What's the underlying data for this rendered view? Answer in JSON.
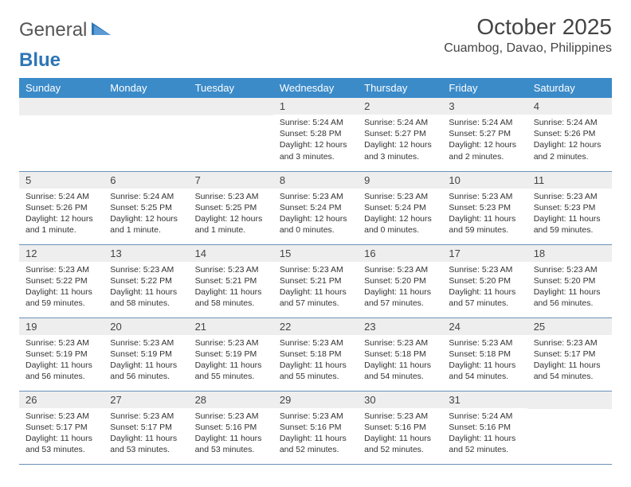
{
  "logo": {
    "text1": "General",
    "text2": "Blue"
  },
  "title": "October 2025",
  "location": "Cuambog, Davao, Philippines",
  "colors": {
    "header_bg": "#3b8bc9",
    "header_fg": "#ffffff",
    "daynum_bg": "#eeeeee",
    "row_border": "#6a91b8",
    "logo_blue": "#2e75b6",
    "body_text": "#333333"
  },
  "day_headers": [
    "Sunday",
    "Monday",
    "Tuesday",
    "Wednesday",
    "Thursday",
    "Friday",
    "Saturday"
  ],
  "weeks": [
    [
      {
        "blank": true
      },
      {
        "blank": true
      },
      {
        "blank": true
      },
      {
        "day": "1",
        "sunrise": "5:24 AM",
        "sunset": "5:28 PM",
        "daylight": "12 hours and 3 minutes."
      },
      {
        "day": "2",
        "sunrise": "5:24 AM",
        "sunset": "5:27 PM",
        "daylight": "12 hours and 3 minutes."
      },
      {
        "day": "3",
        "sunrise": "5:24 AM",
        "sunset": "5:27 PM",
        "daylight": "12 hours and 2 minutes."
      },
      {
        "day": "4",
        "sunrise": "5:24 AM",
        "sunset": "5:26 PM",
        "daylight": "12 hours and 2 minutes."
      }
    ],
    [
      {
        "day": "5",
        "sunrise": "5:24 AM",
        "sunset": "5:26 PM",
        "daylight": "12 hours and 1 minute."
      },
      {
        "day": "6",
        "sunrise": "5:24 AM",
        "sunset": "5:25 PM",
        "daylight": "12 hours and 1 minute."
      },
      {
        "day": "7",
        "sunrise": "5:23 AM",
        "sunset": "5:25 PM",
        "daylight": "12 hours and 1 minute."
      },
      {
        "day": "8",
        "sunrise": "5:23 AM",
        "sunset": "5:24 PM",
        "daylight": "12 hours and 0 minutes."
      },
      {
        "day": "9",
        "sunrise": "5:23 AM",
        "sunset": "5:24 PM",
        "daylight": "12 hours and 0 minutes."
      },
      {
        "day": "10",
        "sunrise": "5:23 AM",
        "sunset": "5:23 PM",
        "daylight": "11 hours and 59 minutes."
      },
      {
        "day": "11",
        "sunrise": "5:23 AM",
        "sunset": "5:23 PM",
        "daylight": "11 hours and 59 minutes."
      }
    ],
    [
      {
        "day": "12",
        "sunrise": "5:23 AM",
        "sunset": "5:22 PM",
        "daylight": "11 hours and 59 minutes."
      },
      {
        "day": "13",
        "sunrise": "5:23 AM",
        "sunset": "5:22 PM",
        "daylight": "11 hours and 58 minutes."
      },
      {
        "day": "14",
        "sunrise": "5:23 AM",
        "sunset": "5:21 PM",
        "daylight": "11 hours and 58 minutes."
      },
      {
        "day": "15",
        "sunrise": "5:23 AM",
        "sunset": "5:21 PM",
        "daylight": "11 hours and 57 minutes."
      },
      {
        "day": "16",
        "sunrise": "5:23 AM",
        "sunset": "5:20 PM",
        "daylight": "11 hours and 57 minutes."
      },
      {
        "day": "17",
        "sunrise": "5:23 AM",
        "sunset": "5:20 PM",
        "daylight": "11 hours and 57 minutes."
      },
      {
        "day": "18",
        "sunrise": "5:23 AM",
        "sunset": "5:20 PM",
        "daylight": "11 hours and 56 minutes."
      }
    ],
    [
      {
        "day": "19",
        "sunrise": "5:23 AM",
        "sunset": "5:19 PM",
        "daylight": "11 hours and 56 minutes."
      },
      {
        "day": "20",
        "sunrise": "5:23 AM",
        "sunset": "5:19 PM",
        "daylight": "11 hours and 56 minutes."
      },
      {
        "day": "21",
        "sunrise": "5:23 AM",
        "sunset": "5:19 PM",
        "daylight": "11 hours and 55 minutes."
      },
      {
        "day": "22",
        "sunrise": "5:23 AM",
        "sunset": "5:18 PM",
        "daylight": "11 hours and 55 minutes."
      },
      {
        "day": "23",
        "sunrise": "5:23 AM",
        "sunset": "5:18 PM",
        "daylight": "11 hours and 54 minutes."
      },
      {
        "day": "24",
        "sunrise": "5:23 AM",
        "sunset": "5:18 PM",
        "daylight": "11 hours and 54 minutes."
      },
      {
        "day": "25",
        "sunrise": "5:23 AM",
        "sunset": "5:17 PM",
        "daylight": "11 hours and 54 minutes."
      }
    ],
    [
      {
        "day": "26",
        "sunrise": "5:23 AM",
        "sunset": "5:17 PM",
        "daylight": "11 hours and 53 minutes."
      },
      {
        "day": "27",
        "sunrise": "5:23 AM",
        "sunset": "5:17 PM",
        "daylight": "11 hours and 53 minutes."
      },
      {
        "day": "28",
        "sunrise": "5:23 AM",
        "sunset": "5:16 PM",
        "daylight": "11 hours and 53 minutes."
      },
      {
        "day": "29",
        "sunrise": "5:23 AM",
        "sunset": "5:16 PM",
        "daylight": "11 hours and 52 minutes."
      },
      {
        "day": "30",
        "sunrise": "5:23 AM",
        "sunset": "5:16 PM",
        "daylight": "11 hours and 52 minutes."
      },
      {
        "day": "31",
        "sunrise": "5:24 AM",
        "sunset": "5:16 PM",
        "daylight": "11 hours and 52 minutes."
      },
      {
        "blank": true
      }
    ]
  ],
  "labels": {
    "sunrise": "Sunrise: ",
    "sunset": "Sunset: ",
    "daylight": "Daylight: "
  }
}
